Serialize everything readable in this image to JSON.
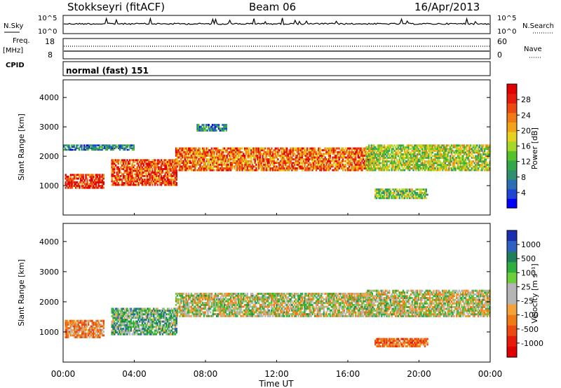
{
  "header": {
    "station": "Stokkseyri (fitACF)",
    "beam": "Beam 06",
    "date": "16/Apr/2013"
  },
  "noise_panel": {
    "left_label": "N.Sky",
    "right_label": "N.Search",
    "left_ticks": [
      "10^5",
      "10^0"
    ],
    "right_ticks": [
      "10^5",
      "10^0"
    ]
  },
  "freq_panel": {
    "left_label_line1": "Freq.",
    "left_label_line2": "[MHz]",
    "left_ticks": [
      "18",
      "8"
    ],
    "right_label": "Nave",
    "right_ticks": [
      "60",
      "0"
    ]
  },
  "cpid_panel": {
    "label": "CPID",
    "mode": "normal (fast) 151"
  },
  "x_axis": {
    "title": "Time UT",
    "ticks": [
      "00:00",
      "04:00",
      "08:00",
      "12:00",
      "16:00",
      "20:00",
      "00:00"
    ]
  },
  "chart_data": [
    {
      "type": "heatmap",
      "panel": "power",
      "ylabel": "Slant Range [km]",
      "y_ticks": [
        1000,
        2000,
        3000,
        4000
      ],
      "ylim": [
        0,
        4600
      ],
      "xlim_hours": [
        0,
        24
      ],
      "colorbar": {
        "label": "Power [dB]",
        "ticks": [
          4,
          8,
          12,
          16,
          20,
          24,
          28
        ],
        "range": [
          0,
          32
        ],
        "colors": [
          "#0000ff",
          "#1f44d6",
          "#2c6fb5",
          "#2f8f6f",
          "#33a84b",
          "#55c22a",
          "#a6d82a",
          "#e6d21e",
          "#f2a31a",
          "#f07a14",
          "#ec4a10",
          "#e61b0c",
          "#e00000"
        ]
      },
      "echo_regions": [
        {
          "t_start": 0.1,
          "t_end": 2.3,
          "r_min": 900,
          "r_max": 1400,
          "level": 28
        },
        {
          "t_start": 2.7,
          "t_end": 6.4,
          "r_min": 1000,
          "r_max": 1900,
          "level": 26
        },
        {
          "t_start": 6.3,
          "t_end": 17.4,
          "r_min": 1500,
          "r_max": 2300,
          "level": 24
        },
        {
          "t_start": 17.0,
          "t_end": 24.0,
          "r_min": 1500,
          "r_max": 2400,
          "level": 16
        },
        {
          "t_start": 17.5,
          "t_end": 20.5,
          "r_min": 550,
          "r_max": 900,
          "level": 14
        },
        {
          "t_start": 0.0,
          "t_end": 4.0,
          "r_min": 2200,
          "r_max": 2400,
          "level": 8
        },
        {
          "t_start": 7.5,
          "t_end": 9.2,
          "r_min": 2850,
          "r_max": 3100,
          "level": 8
        }
      ]
    },
    {
      "type": "heatmap",
      "panel": "velocity",
      "ylabel": "Slant Range [km]",
      "y_ticks": [
        1000,
        2000,
        3000,
        4000
      ],
      "ylim": [
        0,
        4600
      ],
      "xlim_hours": [
        0,
        24
      ],
      "colorbar": {
        "label": "Velocity [m s⁻¹]",
        "ticks": [
          1000,
          500,
          100,
          25,
          -25,
          -100,
          -500,
          -1000
        ],
        "colors": [
          "#1a2fb0",
          "#2f61c4",
          "#1f7f5a",
          "#2eae3c",
          "#6ccf3a",
          "#b5b5b5",
          "#b5b5b5",
          "#f3a23c",
          "#f07a14",
          "#ec4a10",
          "#e61b0c",
          "#e00000"
        ]
      },
      "echo_regions": [
        {
          "t_start": 0.1,
          "t_end": 2.3,
          "r_min": 800,
          "r_max": 1400,
          "velocity": -200
        },
        {
          "t_start": 2.7,
          "t_end": 6.4,
          "r_min": 900,
          "r_max": 1800,
          "velocity": 150
        },
        {
          "t_start": 6.3,
          "t_end": 17.4,
          "r_min": 1500,
          "r_max": 2300,
          "velocity": 0
        },
        {
          "t_start": 17.0,
          "t_end": 24.0,
          "r_min": 1500,
          "r_max": 2400,
          "velocity": 0
        },
        {
          "t_start": 17.5,
          "t_end": 20.5,
          "r_min": 500,
          "r_max": 800,
          "velocity": -300
        }
      ]
    }
  ]
}
